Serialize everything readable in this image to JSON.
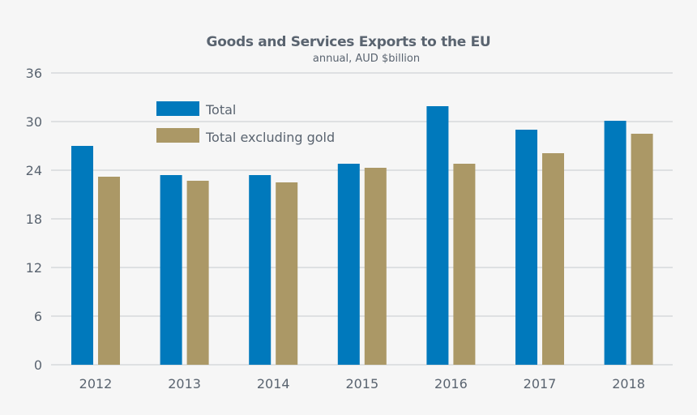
{
  "chart_data": {
    "type": "bar",
    "title": "Goods and Services Exports to the EU",
    "subtitle": "annual, AUD $billion",
    "xlabel": "",
    "ylabel": "",
    "categories": [
      "2012",
      "2013",
      "2014",
      "2015",
      "2016",
      "2017",
      "2018"
    ],
    "series": [
      {
        "name": "Total",
        "color": "#0079bc",
        "values": [
          27.0,
          23.4,
          23.4,
          24.8,
          31.9,
          29.0,
          30.1
        ]
      },
      {
        "name": "Total excluding gold",
        "color": "#ab9866",
        "values": [
          23.2,
          22.7,
          22.5,
          24.3,
          24.8,
          26.1,
          28.5
        ]
      }
    ],
    "ylim": [
      0,
      36
    ],
    "yticks": [
      0,
      6,
      12,
      18,
      24,
      30,
      36
    ],
    "ytick_labels": [
      "0",
      "6",
      "12",
      "18",
      "24",
      "30",
      "36"
    ],
    "grid": true,
    "legend_position": "top-left"
  }
}
